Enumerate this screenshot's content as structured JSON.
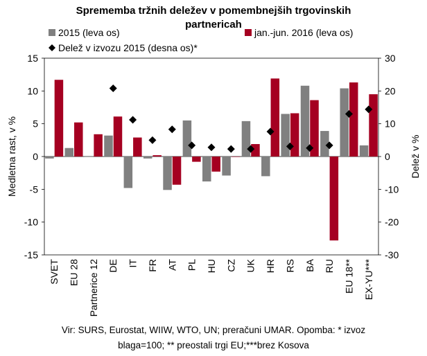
{
  "chart_data": {
    "type": "bar",
    "title_lines": [
      "Sprememba tržnih deležev v pomembnejših trgovinskih",
      "partnericah"
    ],
    "categories": [
      "SVET",
      "EU 28",
      "Partnerice 12",
      "DE",
      "IT",
      "FR",
      "AT",
      "PL",
      "HU",
      "CZ",
      "UK",
      "HR",
      "RS",
      "BA",
      "RU",
      "EU 18**",
      "EX-YU***"
    ],
    "series": [
      {
        "name": "2015 (leva os)",
        "axis": "left",
        "kind": "bar",
        "color": "#808080",
        "values": [
          -0.3,
          1.3,
          0.0,
          3.2,
          -4.8,
          -0.3,
          -5.1,
          5.5,
          -3.8,
          -2.9,
          5.4,
          -3.0,
          6.5,
          10.8,
          3.9,
          10.4,
          1.7
        ]
      },
      {
        "name": "jan.-jun. 2016 (leva os)",
        "axis": "left",
        "kind": "bar",
        "color": "#A50021",
        "values": [
          11.7,
          5.2,
          3.4,
          6.1,
          2.9,
          0.2,
          -4.3,
          -0.8,
          -2.3,
          0.0,
          1.9,
          11.9,
          6.6,
          8.6,
          -12.8,
          11.3,
          9.5
        ]
      },
      {
        "name": "Delež v izvozu 2015 (desna os)*",
        "axis": "right",
        "kind": "marker",
        "color": "#000000",
        "values": [
          null,
          null,
          null,
          20.8,
          11.2,
          5.0,
          8.3,
          3.4,
          2.8,
          2.3,
          2.3,
          7.6,
          3.1,
          2.6,
          3.4,
          13.0,
          14.4
        ]
      }
    ],
    "ylabel": "Medletna rast, v %",
    "y2label": "Delež v %",
    "ylim": [
      -15,
      15
    ],
    "y2lim": [
      -30,
      30
    ],
    "yticks": [
      -15,
      -10,
      -5,
      0,
      5,
      10,
      15
    ],
    "y2ticks": [
      -30,
      -20,
      -10,
      0,
      10,
      20,
      30
    ],
    "legend_position": "top",
    "grid": false
  },
  "footnote_lines": [
    "Vir: SURS, Eurostat, WIIW, WTO, UN; preračuni UMAR. Opomba: * izvoz",
    "blaga=100; ** preostali trgi EU;***brez Kosova"
  ]
}
